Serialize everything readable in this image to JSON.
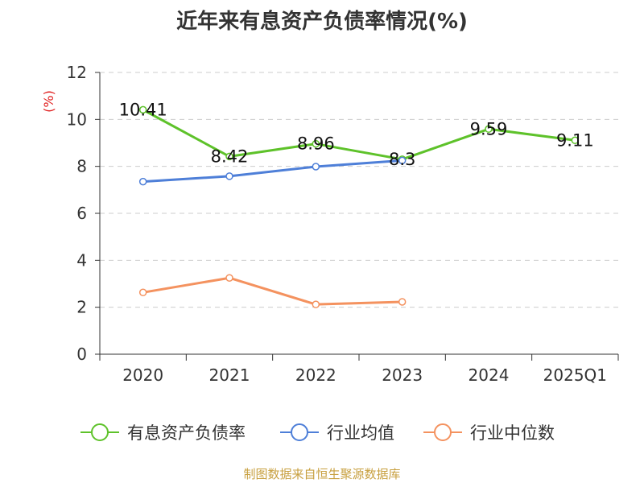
{
  "title": "近年来有息资产负债率情况(%)",
  "source": "制图数据来自恒生聚源数据库",
  "colors": {
    "series1": "#5ec22a",
    "series2": "#4e7fd8",
    "series3": "#f4925f",
    "grid": "#cccccc",
    "axis": "#333333",
    "unit": "#e02020",
    "source": "#c8a040"
  },
  "chart_data": {
    "type": "line",
    "title": "近年来有息资产负债率情况(%)",
    "ylabel": "(%)",
    "xlabel": "",
    "ylim": [
      0,
      12
    ],
    "yticks": [
      0,
      2,
      4,
      6,
      8,
      10,
      12
    ],
    "categories": [
      "2020",
      "2021",
      "2022",
      "2023",
      "2024",
      "2025Q1"
    ],
    "grid": true,
    "legend_position": "bottom",
    "series": [
      {
        "name": "有息资产负债率",
        "values": [
          10.41,
          8.42,
          8.96,
          8.3,
          9.59,
          9.11
        ],
        "labels": [
          "10.41",
          "8.42",
          "8.96",
          "8.3",
          "9.59",
          "9.11"
        ]
      },
      {
        "name": "行业均值",
        "values": [
          7.35,
          7.58,
          7.99,
          8.25,
          null,
          null
        ]
      },
      {
        "name": "行业中位数",
        "values": [
          2.63,
          3.25,
          2.12,
          2.23,
          null,
          null
        ]
      }
    ]
  }
}
